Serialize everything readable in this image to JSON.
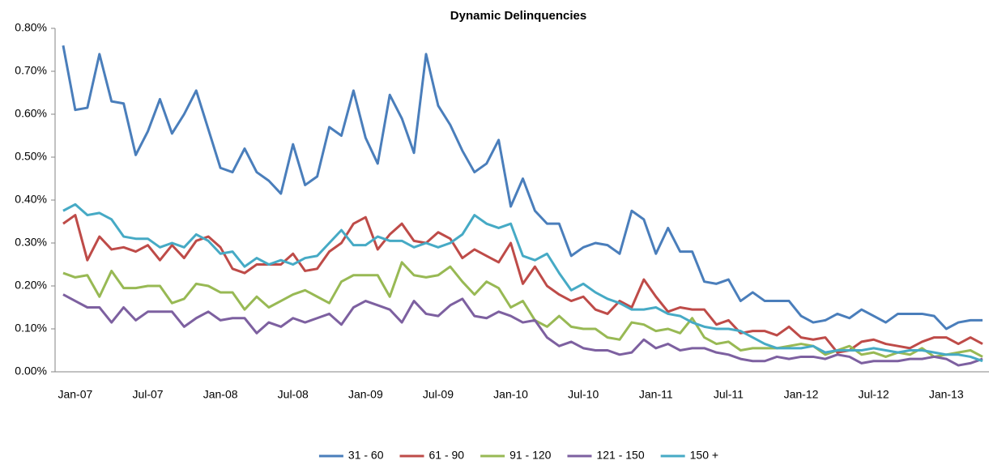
{
  "chart_data": {
    "type": "line",
    "title": "Dynamic Delinquencies",
    "categories": [
      null,
      "Jan-07",
      null,
      null,
      null,
      null,
      null,
      "Jul-07",
      null,
      null,
      null,
      null,
      null,
      "Jan-08",
      null,
      null,
      null,
      null,
      null,
      "Jul-08",
      null,
      null,
      null,
      null,
      null,
      "Jan-09",
      null,
      null,
      null,
      null,
      null,
      "Jul-09",
      null,
      null,
      null,
      null,
      null,
      "Jan-10",
      null,
      null,
      null,
      null,
      null,
      "Jul-10",
      null,
      null,
      null,
      null,
      null,
      "Jan-11",
      null,
      null,
      null,
      null,
      null,
      "Jul-11",
      null,
      null,
      null,
      null,
      null,
      "Jan-12",
      null,
      null,
      null,
      null,
      null,
      "Jul-12",
      null,
      null,
      null,
      null,
      null,
      "Jan-13",
      null,
      null,
      null
    ],
    "series": [
      {
        "name": "31 - 60",
        "color": "#4a7ebb",
        "values": [
          0.76,
          0.61,
          0.615,
          0.74,
          0.63,
          0.625,
          0.505,
          0.56,
          0.635,
          0.555,
          0.6,
          0.655,
          0.565,
          0.475,
          0.465,
          0.52,
          0.465,
          0.445,
          0.415,
          0.53,
          0.435,
          0.455,
          0.57,
          0.55,
          0.655,
          0.545,
          0.485,
          0.645,
          0.59,
          0.51,
          0.74,
          0.62,
          0.575,
          0.515,
          0.465,
          0.485,
          0.54,
          0.385,
          0.45,
          0.375,
          0.345,
          0.345,
          0.27,
          0.29,
          0.3,
          0.295,
          0.275,
          0.375,
          0.355,
          0.275,
          0.335,
          0.28,
          0.28,
          0.21,
          0.205,
          0.215,
          0.165,
          0.185,
          0.165,
          0.165,
          0.165,
          0.13,
          0.115,
          0.12,
          0.135,
          0.125,
          0.145,
          0.13,
          0.115,
          0.135,
          0.135,
          0.135,
          0.13,
          0.1,
          0.115,
          0.12,
          0.12
        ]
      },
      {
        "name": "61 - 90",
        "color": "#be4b48",
        "values": [
          0.345,
          0.365,
          0.26,
          0.315,
          0.285,
          0.29,
          0.28,
          0.295,
          0.26,
          0.295,
          0.265,
          0.305,
          0.315,
          0.29,
          0.24,
          0.23,
          0.25,
          0.25,
          0.25,
          0.275,
          0.235,
          0.24,
          0.28,
          0.3,
          0.345,
          0.36,
          0.285,
          0.32,
          0.345,
          0.305,
          0.3,
          0.325,
          0.31,
          0.265,
          0.285,
          0.27,
          0.255,
          0.3,
          0.205,
          0.245,
          0.2,
          0.18,
          0.165,
          0.175,
          0.145,
          0.135,
          0.165,
          0.15,
          0.215,
          0.175,
          0.14,
          0.15,
          0.145,
          0.145,
          0.11,
          0.12,
          0.09,
          0.095,
          0.095,
          0.085,
          0.105,
          0.08,
          0.075,
          0.08,
          0.045,
          0.05,
          0.07,
          0.075,
          0.065,
          0.06,
          0.055,
          0.07,
          0.08,
          0.08,
          0.065,
          0.08,
          0.065
        ]
      },
      {
        "name": "91 - 120",
        "color": "#98b954",
        "values": [
          0.23,
          0.22,
          0.225,
          0.175,
          0.235,
          0.195,
          0.195,
          0.2,
          0.2,
          0.16,
          0.17,
          0.205,
          0.2,
          0.185,
          0.185,
          0.145,
          0.175,
          0.15,
          0.165,
          0.18,
          0.19,
          0.175,
          0.16,
          0.21,
          0.225,
          0.225,
          0.225,
          0.175,
          0.255,
          0.225,
          0.22,
          0.225,
          0.245,
          0.21,
          0.18,
          0.21,
          0.195,
          0.15,
          0.165,
          0.12,
          0.105,
          0.13,
          0.105,
          0.1,
          0.1,
          0.08,
          0.075,
          0.115,
          0.11,
          0.095,
          0.1,
          0.09,
          0.125,
          0.08,
          0.065,
          0.07,
          0.05,
          0.055,
          0.055,
          0.055,
          0.06,
          0.065,
          0.06,
          0.04,
          0.05,
          0.06,
          0.04,
          0.045,
          0.035,
          0.045,
          0.04,
          0.055,
          0.035,
          0.04,
          0.045,
          0.05,
          0.035
        ]
      },
      {
        "name": "121 - 150",
        "color": "#7d60a0",
        "values": [
          0.18,
          0.165,
          0.15,
          0.15,
          0.115,
          0.15,
          0.12,
          0.14,
          0.14,
          0.14,
          0.105,
          0.125,
          0.14,
          0.12,
          0.125,
          0.125,
          0.09,
          0.115,
          0.105,
          0.125,
          0.115,
          0.125,
          0.135,
          0.11,
          0.15,
          0.165,
          0.155,
          0.145,
          0.115,
          0.165,
          0.135,
          0.13,
          0.155,
          0.17,
          0.13,
          0.125,
          0.14,
          0.13,
          0.115,
          0.12,
          0.08,
          0.06,
          0.07,
          0.055,
          0.05,
          0.05,
          0.04,
          0.045,
          0.075,
          0.055,
          0.065,
          0.05,
          0.055,
          0.055,
          0.045,
          0.04,
          0.03,
          0.025,
          0.025,
          0.035,
          0.03,
          0.035,
          0.035,
          0.03,
          0.04,
          0.035,
          0.02,
          0.025,
          0.025,
          0.025,
          0.03,
          0.03,
          0.035,
          0.03,
          0.015,
          0.02,
          0.03
        ]
      },
      {
        "name": "150 +",
        "color": "#46aac5",
        "values": [
          0.375,
          0.39,
          0.365,
          0.37,
          0.355,
          0.315,
          0.31,
          0.31,
          0.29,
          0.3,
          0.29,
          0.32,
          0.305,
          0.275,
          0.28,
          0.245,
          0.265,
          0.25,
          0.26,
          0.25,
          0.265,
          0.27,
          0.3,
          0.33,
          0.295,
          0.295,
          0.315,
          0.305,
          0.305,
          0.29,
          0.3,
          0.29,
          0.3,
          0.32,
          0.365,
          0.345,
          0.335,
          0.345,
          0.27,
          0.26,
          0.275,
          0.23,
          0.19,
          0.205,
          0.185,
          0.17,
          0.16,
          0.145,
          0.145,
          0.15,
          0.135,
          0.13,
          0.115,
          0.105,
          0.1,
          0.1,
          0.095,
          0.08,
          0.065,
          0.055,
          0.055,
          0.055,
          0.06,
          0.045,
          0.05,
          0.05,
          0.05,
          0.055,
          0.05,
          0.045,
          0.05,
          0.05,
          0.045,
          0.04,
          0.04,
          0.035,
          0.025
        ]
      }
    ],
    "ylim": [
      0,
      0.8
    ],
    "yticks": [
      {
        "value": 0,
        "label": "0.00%"
      },
      {
        "value": 0.1,
        "label": "0.10%"
      },
      {
        "value": 0.2,
        "label": "0.20%"
      },
      {
        "value": 0.3,
        "label": "0.30%"
      },
      {
        "value": 0.4,
        "label": "0.40%"
      },
      {
        "value": 0.5,
        "label": "0.50%"
      },
      {
        "value": 0.6,
        "label": "0.60%"
      },
      {
        "value": 0.7,
        "label": "0.70%"
      },
      {
        "value": 0.8,
        "label": "0.80%"
      }
    ],
    "grid": false,
    "legend": "bottom"
  }
}
